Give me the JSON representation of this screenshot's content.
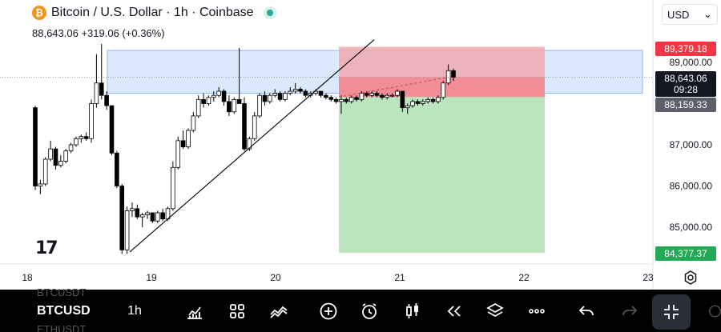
{
  "header": {
    "coin_symbol": "₿",
    "title": "Bitcoin / U.S. Dollar · 1h · Coinbase",
    "price": "88,643.06",
    "change": "+319.06 (+0.36%)",
    "live_status": "live-dot-icon"
  },
  "currency": {
    "label": "USD",
    "arrow": "⌄"
  },
  "price_axis": {
    "labels": [
      "89,000.00",
      "88,000.00",
      "87,000.00",
      "86,000.00",
      "85,000.00"
    ],
    "tag_stop": "89,379.18",
    "tag_current": "88,643.06",
    "tag_countdown": "09:28",
    "tag_entry": "88,159.33",
    "tag_target": "84,377.37"
  },
  "time_axis": {
    "labels": [
      "18",
      "19",
      "20",
      "21",
      "22",
      "23"
    ]
  },
  "colors": {
    "up_candle": "#ffffff",
    "down_candle": "#000000",
    "zone_blue": "#cfe1fb",
    "stop_zone": "#f0a9b0",
    "target_zone": "#b7e4b9",
    "accent_red": "#f23645",
    "accent_green": "#22ab54"
  },
  "chart_data": {
    "type": "candlestick",
    "x_axis_ticks": [
      "18",
      "19",
      "20",
      "21",
      "22",
      "23"
    ],
    "y_axis_ticks": [
      89000,
      88000,
      87000,
      86000,
      85000
    ],
    "ylim": [
      84300,
      89600
    ],
    "last_price": 88643.06,
    "position": {
      "stop": 89379.18,
      "entry": 88159.33,
      "target": 84377.37
    },
    "candles": [
      [
        87900,
        87950,
        85900,
        86000
      ],
      [
        86000,
        86150,
        85800,
        86050
      ],
      [
        86050,
        86700,
        86000,
        86650
      ],
      [
        86650,
        87100,
        86600,
        86900
      ],
      [
        86900,
        86950,
        86400,
        86500
      ],
      [
        86500,
        86750,
        86450,
        86600
      ],
      [
        86600,
        86900,
        86550,
        86850
      ],
      [
        86850,
        87050,
        86800,
        87000
      ],
      [
        87000,
        87200,
        86950,
        87150
      ],
      [
        87150,
        87250,
        87050,
        87200
      ],
      [
        87200,
        87300,
        87100,
        87150
      ],
      [
        87150,
        88100,
        87050,
        88000
      ],
      [
        88000,
        89200,
        87900,
        88500
      ],
      [
        88500,
        89450,
        88100,
        88200
      ],
      [
        88200,
        88300,
        87850,
        87950
      ],
      [
        87950,
        87950,
        86750,
        86800
      ],
      [
        86800,
        86850,
        85950,
        86000
      ],
      [
        86000,
        86050,
        84350,
        84450
      ],
      [
        84450,
        85500,
        84350,
        85400
      ],
      [
        85400,
        85600,
        85250,
        85450
      ],
      [
        85450,
        85550,
        85200,
        85250
      ],
      [
        85250,
        85350,
        85000,
        85300
      ],
      [
        85300,
        85400,
        85200,
        85350
      ],
      [
        85350,
        85350,
        85100,
        85150
      ],
      [
        85150,
        85400,
        85100,
        85350
      ],
      [
        85350,
        85450,
        85150,
        85200
      ],
      [
        85200,
        85500,
        85150,
        85450
      ],
      [
        85450,
        86600,
        85400,
        86450
      ],
      [
        86450,
        87200,
        86400,
        87100
      ],
      [
        87100,
        87350,
        86900,
        86950
      ],
      [
        86950,
        87400,
        86900,
        87350
      ],
      [
        87350,
        87800,
        87300,
        87700
      ],
      [
        87700,
        88200,
        87650,
        88100
      ],
      [
        88100,
        88250,
        87900,
        88000
      ],
      [
        88000,
        88200,
        87950,
        88150
      ],
      [
        88150,
        88300,
        88050,
        88200
      ],
      [
        88200,
        88400,
        88150,
        88300
      ],
      [
        88300,
        88350,
        87950,
        88050
      ],
      [
        88050,
        88200,
        87700,
        87800
      ],
      [
        87800,
        88150,
        87750,
        88100
      ],
      [
        88100,
        89350,
        88050,
        88000
      ],
      [
        88000,
        88150,
        86850,
        86900
      ],
      [
        86900,
        87200,
        86850,
        87150
      ],
      [
        87150,
        87800,
        87100,
        87700
      ],
      [
        87700,
        88250,
        87650,
        88200
      ],
      [
        88200,
        88300,
        87950,
        88050
      ],
      [
        88050,
        88250,
        88000,
        88200
      ],
      [
        88200,
        88350,
        88150,
        88250
      ],
      [
        88250,
        88300,
        88050,
        88100
      ],
      [
        88100,
        88300,
        88050,
        88250
      ],
      [
        88250,
        88400,
        88200,
        88300
      ],
      [
        88300,
        88500,
        88250,
        88350
      ],
      [
        88350,
        88400,
        88250,
        88300
      ],
      [
        88300,
        88350,
        88150,
        88200
      ],
      [
        88200,
        88300,
        88150,
        88250
      ],
      [
        88250,
        88350,
        88200,
        88300
      ],
      [
        88300,
        88300,
        88150,
        88200
      ],
      [
        88200,
        88250,
        88100,
        88150
      ],
      [
        88150,
        88200,
        88050,
        88100
      ],
      [
        88100,
        88150,
        88000,
        88050
      ],
      [
        88050,
        88200,
        87750,
        88100
      ],
      [
        88100,
        88150,
        88000,
        88050
      ],
      [
        88050,
        88200,
        88000,
        88150
      ],
      [
        88150,
        88200,
        88050,
        88100
      ],
      [
        88100,
        88300,
        88050,
        88250
      ],
      [
        88250,
        88300,
        88150,
        88200
      ],
      [
        88200,
        88300,
        88150,
        88250
      ],
      [
        88250,
        88300,
        88150,
        88200
      ],
      [
        88200,
        88250,
        88100,
        88150
      ],
      [
        88150,
        88250,
        88100,
        88200
      ],
      [
        88200,
        88250,
        88150,
        88200
      ],
      [
        88200,
        88350,
        88150,
        88300
      ],
      [
        88300,
        88300,
        87800,
        87900
      ],
      [
        87900,
        88000,
        87750,
        87950
      ],
      [
        87950,
        88100,
        87900,
        88050
      ],
      [
        88050,
        88100,
        87950,
        88000
      ],
      [
        88000,
        88100,
        87950,
        88050
      ],
      [
        88050,
        88150,
        88000,
        88100
      ],
      [
        88100,
        88150,
        88000,
        88050
      ],
      [
        88050,
        88200,
        88000,
        88150
      ],
      [
        88150,
        88550,
        88100,
        88500
      ],
      [
        88500,
        88950,
        88450,
        88800
      ],
      [
        88800,
        88850,
        88550,
        88643
      ]
    ]
  },
  "toolbar": {
    "symbol_prev": "BTCUSDT",
    "symbol": "BTCUSD",
    "symbol_next": "ETHUSDT",
    "interval": "1h"
  }
}
